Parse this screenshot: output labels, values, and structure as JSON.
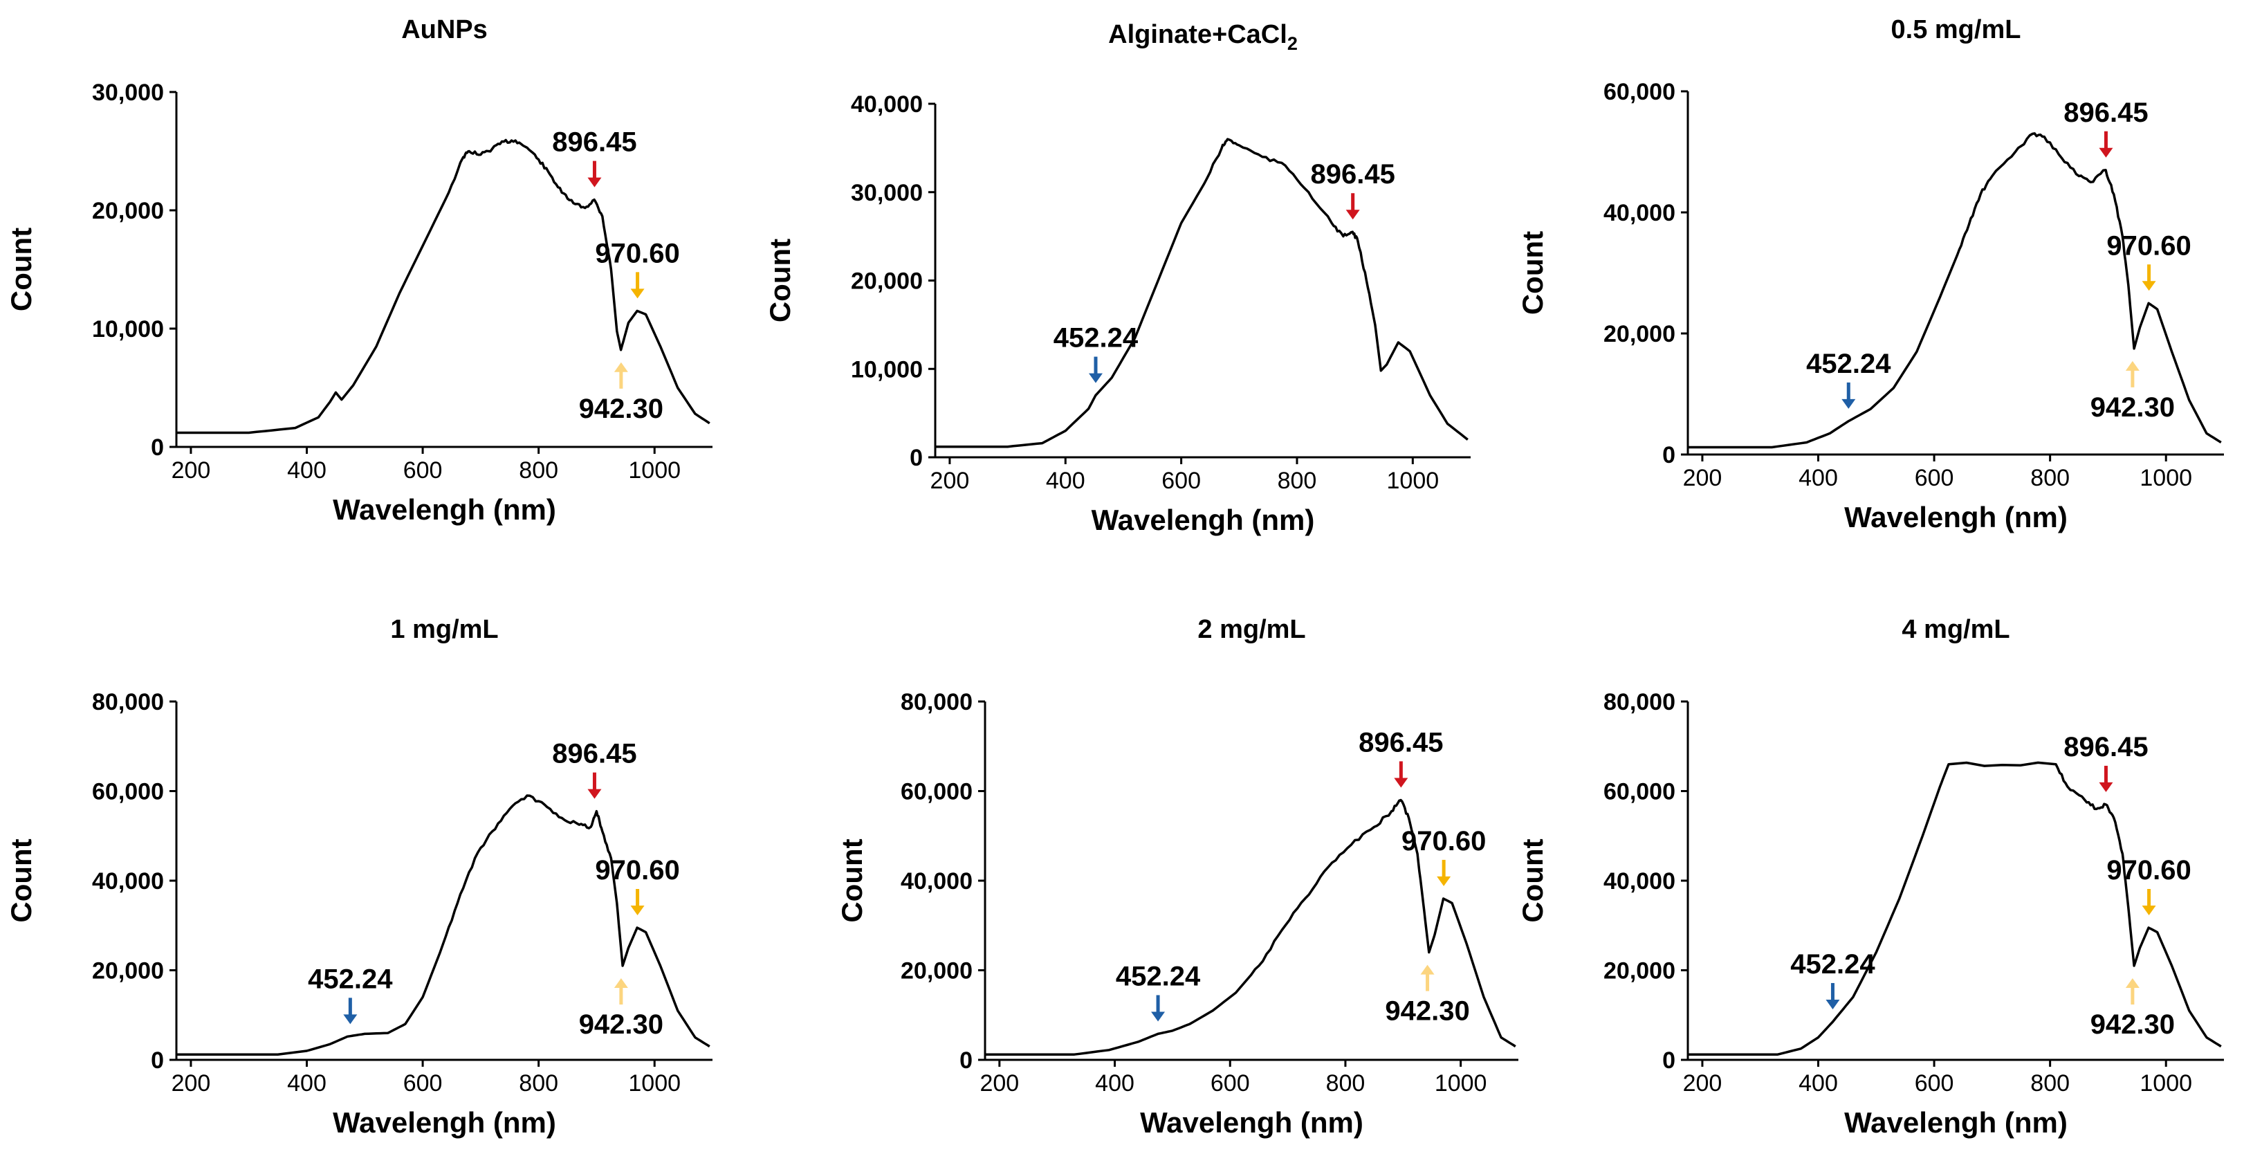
{
  "colors": {
    "line": "#000000",
    "red_arrow": "#d0151e",
    "orange_arrow": "#f5b400",
    "light_arrow": "#fcd57f",
    "blue_arrow": "#1f5fa6"
  },
  "chart_data": [
    {
      "type": "line",
      "title": "AuNPs",
      "title_parts": [],
      "xlabel": "Wavelengh (nm)",
      "ylabel": "Count",
      "xlim": [
        175,
        1100
      ],
      "ylim": [
        0,
        30000
      ],
      "xticks": [
        200,
        400,
        600,
        800,
        1000
      ],
      "yticks": [
        0,
        10000,
        20000,
        30000
      ],
      "ytick_labels": [
        "0",
        "10,000",
        "20,000",
        "30,000"
      ],
      "series": [
        {
          "name": "spectrum",
          "points": [
            [
              175,
              1200
            ],
            [
              300,
              1200
            ],
            [
              380,
              1600
            ],
            [
              420,
              2500
            ],
            [
              440,
              3800
            ],
            [
              450,
              4600
            ],
            [
              460,
              4000
            ],
            [
              480,
              5200
            ],
            [
              520,
              8500
            ],
            [
              560,
              13000
            ],
            [
              600,
              17000
            ],
            [
              640,
              21000
            ],
            [
              670,
              24500
            ],
            [
              680,
              25000
            ],
            [
              700,
              24700
            ],
            [
              720,
              25200
            ],
            [
              740,
              25800
            ],
            [
              760,
              25900
            ],
            [
              780,
              25300
            ],
            [
              800,
              24300
            ],
            [
              820,
              23000
            ],
            [
              840,
              21500
            ],
            [
              860,
              20600
            ],
            [
              880,
              20200
            ],
            [
              896,
              20900
            ],
            [
              910,
              19500
            ],
            [
              925,
              15000
            ],
            [
              935,
              9800
            ],
            [
              942,
              8200
            ],
            [
              955,
              10500
            ],
            [
              970,
              11500
            ],
            [
              985,
              11200
            ],
            [
              1010,
              8500
            ],
            [
              1040,
              5000
            ],
            [
              1070,
              2800
            ],
            [
              1095,
              2000
            ]
          ]
        }
      ],
      "annotations": [
        {
          "label": "896.45",
          "x": 896.45,
          "y": 20900,
          "arrow": "down",
          "color": "red"
        },
        {
          "label": "970.60",
          "x": 970.6,
          "y": 11500,
          "arrow": "down",
          "color": "orange"
        },
        {
          "label": "942.30",
          "x": 942.3,
          "y": 8200,
          "arrow": "up",
          "color": "light"
        }
      ]
    },
    {
      "type": "line",
      "title": "Alginate+CaCl",
      "title_parts": [
        "Alginate+CaCl",
        "2"
      ],
      "xlabel": "Wavelengh (nm)",
      "ylabel": "Count",
      "xlim": [
        175,
        1100
      ],
      "ylim": [
        0,
        40000
      ],
      "xticks": [
        200,
        400,
        600,
        800,
        1000
      ],
      "yticks": [
        0,
        10000,
        20000,
        30000,
        40000
      ],
      "ytick_labels": [
        "0",
        "10,000",
        "20,000",
        "30,000",
        "40,000"
      ],
      "series": [
        {
          "name": "spectrum",
          "points": [
            [
              175,
              1200
            ],
            [
              300,
              1200
            ],
            [
              360,
              1600
            ],
            [
              400,
              3000
            ],
            [
              440,
              5500
            ],
            [
              452,
              7000
            ],
            [
              480,
              9000
            ],
            [
              520,
              13500
            ],
            [
              560,
              20000
            ],
            [
              600,
              26500
            ],
            [
              640,
              31000
            ],
            [
              670,
              35000
            ],
            [
              680,
              36000
            ],
            [
              700,
              35300
            ],
            [
              740,
              34000
            ],
            [
              780,
              33000
            ],
            [
              820,
              30000
            ],
            [
              860,
              26500
            ],
            [
              880,
              25000
            ],
            [
              896,
              25500
            ],
            [
              905,
              24500
            ],
            [
              920,
              20000
            ],
            [
              935,
              15000
            ],
            [
              945,
              9800
            ],
            [
              955,
              10500
            ],
            [
              975,
              13000
            ],
            [
              995,
              12000
            ],
            [
              1030,
              7000
            ],
            [
              1060,
              3800
            ],
            [
              1095,
              2000
            ]
          ]
        }
      ],
      "annotations": [
        {
          "label": "896.45",
          "x": 896.45,
          "y": 25500,
          "arrow": "down",
          "color": "red"
        },
        {
          "label": "452.24",
          "x": 452.24,
          "y": 7000,
          "arrow": "down",
          "color": "blue"
        }
      ]
    },
    {
      "type": "line",
      "title": "0.5 mg/mL",
      "title_parts": [],
      "xlabel": "Wavelengh (nm)",
      "ylabel": "Count",
      "xlim": [
        175,
        1100
      ],
      "ylim": [
        0,
        60000
      ],
      "xticks": [
        200,
        400,
        600,
        800,
        1000
      ],
      "yticks": [
        0,
        20000,
        40000,
        60000
      ],
      "ytick_labels": [
        "0",
        "20,000",
        "40,000",
        "60,000"
      ],
      "series": [
        {
          "name": "spectrum",
          "points": [
            [
              175,
              1200
            ],
            [
              320,
              1200
            ],
            [
              380,
              2000
            ],
            [
              420,
              3500
            ],
            [
              452,
              5500
            ],
            [
              490,
              7500
            ],
            [
              530,
              11000
            ],
            [
              570,
              17000
            ],
            [
              610,
              26000
            ],
            [
              640,
              33000
            ],
            [
              660,
              38000
            ],
            [
              680,
              43000
            ],
            [
              700,
              46000
            ],
            [
              740,
              50000
            ],
            [
              770,
              53000
            ],
            [
              790,
              52500
            ],
            [
              820,
              49000
            ],
            [
              850,
              46000
            ],
            [
              870,
              45000
            ],
            [
              896,
              47000
            ],
            [
              910,
              43000
            ],
            [
              925,
              36000
            ],
            [
              935,
              28000
            ],
            [
              945,
              17500
            ],
            [
              955,
              21000
            ],
            [
              970,
              25000
            ],
            [
              985,
              24000
            ],
            [
              1010,
              17000
            ],
            [
              1040,
              9000
            ],
            [
              1070,
              3500
            ],
            [
              1095,
              2000
            ]
          ]
        }
      ],
      "annotations": [
        {
          "label": "896.45",
          "x": 896.45,
          "y": 47000,
          "arrow": "down",
          "color": "red"
        },
        {
          "label": "970.60",
          "x": 970.6,
          "y": 25000,
          "arrow": "down",
          "color": "orange"
        },
        {
          "label": "942.30",
          "x": 942.3,
          "y": 17500,
          "arrow": "up",
          "color": "light"
        },
        {
          "label": "452.24",
          "x": 452.24,
          "y": 5500,
          "arrow": "down",
          "color": "blue"
        }
      ]
    },
    {
      "type": "line",
      "title": "1 mg/mL",
      "title_parts": [],
      "xlabel": "Wavelengh (nm)",
      "ylabel": "Count",
      "xlim": [
        175,
        1100
      ],
      "ylim": [
        0,
        80000
      ],
      "xticks": [
        200,
        400,
        600,
        800,
        1000
      ],
      "yticks": [
        0,
        20000,
        40000,
        60000,
        80000
      ],
      "ytick_labels": [
        "0",
        "20,000",
        "40,000",
        "60,000",
        "80,000"
      ],
      "series": [
        {
          "name": "spectrum",
          "points": [
            [
              175,
              1200
            ],
            [
              350,
              1200
            ],
            [
              400,
              2000
            ],
            [
              440,
              3500
            ],
            [
              470,
              5200
            ],
            [
              500,
              5800
            ],
            [
              540,
              6000
            ],
            [
              570,
              8000
            ],
            [
              600,
              14000
            ],
            [
              630,
              24000
            ],
            [
              660,
              35000
            ],
            [
              690,
              45000
            ],
            [
              720,
              51000
            ],
            [
              750,
              56000
            ],
            [
              780,
              59000
            ],
            [
              810,
              57000
            ],
            [
              840,
              54000
            ],
            [
              870,
              52500
            ],
            [
              890,
              52000
            ],
            [
              900,
              55500
            ],
            [
              910,
              51000
            ],
            [
              925,
              45000
            ],
            [
              935,
              35000
            ],
            [
              945,
              21000
            ],
            [
              955,
              25000
            ],
            [
              970,
              29500
            ],
            [
              985,
              28500
            ],
            [
              1010,
              21000
            ],
            [
              1040,
              11000
            ],
            [
              1070,
              5000
            ],
            [
              1095,
              3000
            ]
          ]
        }
      ],
      "annotations": [
        {
          "label": "896.45",
          "x": 896.45,
          "y": 55500,
          "arrow": "down",
          "color": "red"
        },
        {
          "label": "970.60",
          "x": 970.6,
          "y": 29500,
          "arrow": "down",
          "color": "orange"
        },
        {
          "label": "942.30",
          "x": 942.3,
          "y": 21000,
          "arrow": "up",
          "color": "light"
        },
        {
          "label": "452.24",
          "x": 475,
          "y": 5200,
          "arrow": "down",
          "color": "blue"
        }
      ]
    },
    {
      "type": "line",
      "title": "2 mg/mL",
      "title_parts": [],
      "xlabel": "Wavelengh (nm)",
      "ylabel": "Count",
      "xlim": [
        175,
        1100
      ],
      "ylim": [
        0,
        80000
      ],
      "xticks": [
        200,
        400,
        600,
        800,
        1000
      ],
      "yticks": [
        0,
        20000,
        40000,
        60000,
        80000
      ],
      "ytick_labels": [
        "0",
        "20,000",
        "40,000",
        "60,000",
        "80,000"
      ],
      "series": [
        {
          "name": "spectrum",
          "points": [
            [
              175,
              1200
            ],
            [
              330,
              1200
            ],
            [
              390,
              2200
            ],
            [
              440,
              4000
            ],
            [
              475,
              5800
            ],
            [
              500,
              6500
            ],
            [
              530,
              8000
            ],
            [
              570,
              11000
            ],
            [
              610,
              15000
            ],
            [
              650,
              21000
            ],
            [
              690,
              29000
            ],
            [
              730,
              36000
            ],
            [
              770,
              43000
            ],
            [
              810,
              48000
            ],
            [
              850,
              52000
            ],
            [
              880,
              55500
            ],
            [
              896,
              58000
            ],
            [
              910,
              54000
            ],
            [
              925,
              46000
            ],
            [
              935,
              35000
            ],
            [
              945,
              24000
            ],
            [
              955,
              28000
            ],
            [
              970,
              36000
            ],
            [
              985,
              35000
            ],
            [
              1010,
              26000
            ],
            [
              1040,
              14000
            ],
            [
              1070,
              5000
            ],
            [
              1095,
              3000
            ]
          ]
        }
      ],
      "annotations": [
        {
          "label": "896.45",
          "x": 896.45,
          "y": 58000,
          "arrow": "down",
          "color": "red"
        },
        {
          "label": "970.60",
          "x": 970.6,
          "y": 36000,
          "arrow": "down",
          "color": "orange"
        },
        {
          "label": "942.30",
          "x": 942.3,
          "y": 24000,
          "arrow": "up",
          "color": "light"
        },
        {
          "label": "452.24",
          "x": 475,
          "y": 5800,
          "arrow": "down",
          "color": "blue"
        }
      ]
    },
    {
      "type": "line",
      "title": "4 mg/mL",
      "title_parts": [],
      "xlabel": "Wavelengh (nm)",
      "ylabel": "Count",
      "xlim": [
        175,
        1100
      ],
      "ylim": [
        0,
        80000
      ],
      "xticks": [
        200,
        400,
        600,
        800,
        1000
      ],
      "yticks": [
        0,
        20000,
        40000,
        60000,
        80000
      ],
      "ytick_labels": [
        "0",
        "20,000",
        "40,000",
        "60,000",
        "80,000"
      ],
      "series": [
        {
          "name": "spectrum",
          "points": [
            [
              175,
              1200
            ],
            [
              330,
              1200
            ],
            [
              370,
              2500
            ],
            [
              400,
              5000
            ],
            [
              425,
              8500
            ],
            [
              460,
              14000
            ],
            [
              500,
              24000
            ],
            [
              540,
              36000
            ],
            [
              580,
              50000
            ],
            [
              610,
              61000
            ],
            [
              625,
              66000
            ],
            [
              810,
              66000
            ],
            [
              830,
              61000
            ],
            [
              860,
              58000
            ],
            [
              880,
              56000
            ],
            [
              896,
              57000
            ],
            [
              910,
              54000
            ],
            [
              925,
              46000
            ],
            [
              935,
              34000
            ],
            [
              945,
              21000
            ],
            [
              955,
              25000
            ],
            [
              970,
              29500
            ],
            [
              985,
              28500
            ],
            [
              1010,
              21000
            ],
            [
              1040,
              11000
            ],
            [
              1070,
              5000
            ],
            [
              1095,
              3000
            ]
          ]
        }
      ],
      "annotations": [
        {
          "label": "896.45",
          "x": 896.45,
          "y": 57000,
          "arrow": "down",
          "color": "red"
        },
        {
          "label": "970.60",
          "x": 970.6,
          "y": 29500,
          "arrow": "down",
          "color": "orange"
        },
        {
          "label": "942.30",
          "x": 942.3,
          "y": 21000,
          "arrow": "up",
          "color": "light"
        },
        {
          "label": "452.24",
          "x": 425,
          "y": 8500,
          "arrow": "down",
          "color": "blue"
        }
      ]
    }
  ]
}
